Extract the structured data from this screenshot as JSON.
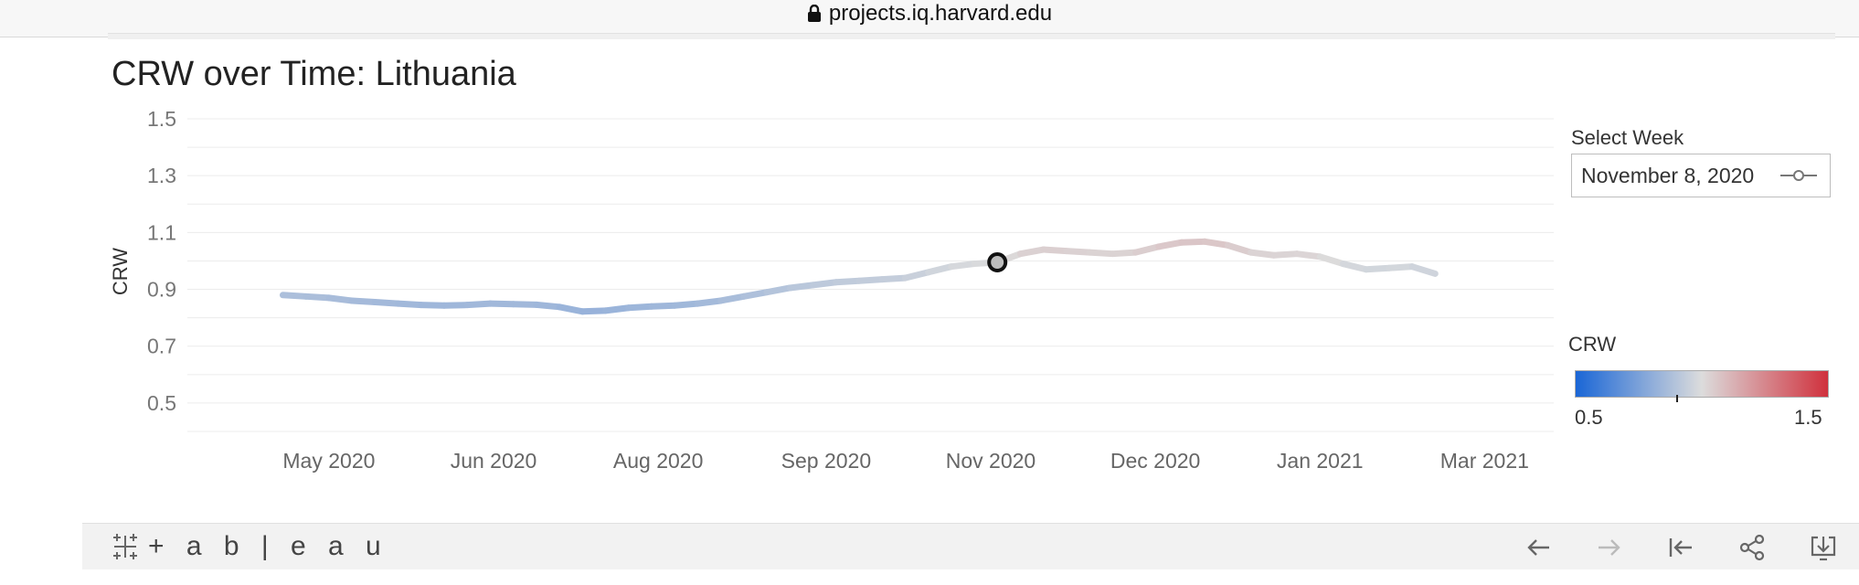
{
  "browser": {
    "url": "projects.iq.harvard.edu",
    "lock_icon": "lock-icon"
  },
  "chart_data": {
    "type": "line",
    "title": "CRW over Time: Lithuania",
    "xlabel": "",
    "ylabel": "CRW",
    "ylim": [
      0.4,
      1.5
    ],
    "yticks": [
      "1.5",
      "1.3",
      "1.1",
      "0.9",
      "0.7",
      "0.5"
    ],
    "xticks": [
      "May 2020",
      "Jun 2020",
      "Aug 2020",
      "Sep 2020",
      "Nov 2020",
      "Dec 2020",
      "Jan 2021",
      "Mar 2021"
    ],
    "grid": true,
    "series": [
      {
        "x": [
          "2020-04-05",
          "2020-04-12",
          "2020-04-19",
          "2020-04-26",
          "2020-05-03",
          "2020-05-10",
          "2020-05-17",
          "2020-05-24",
          "2020-05-31",
          "2020-06-07",
          "2020-06-14",
          "2020-06-21",
          "2020-06-28",
          "2020-07-05",
          "2020-07-12",
          "2020-07-19",
          "2020-07-26",
          "2020-08-02",
          "2020-08-09",
          "2020-08-16",
          "2020-08-23",
          "2020-08-30",
          "2020-09-06",
          "2020-09-13",
          "2020-09-20",
          "2020-09-27",
          "2020-10-04",
          "2020-10-11",
          "2020-10-18",
          "2020-10-25",
          "2020-11-01",
          "2020-11-08",
          "2020-11-15",
          "2020-11-22",
          "2020-11-29",
          "2020-12-06",
          "2020-12-13",
          "2020-12-20",
          "2020-12-27",
          "2021-01-03",
          "2021-01-10",
          "2021-01-17",
          "2021-01-24",
          "2021-01-31",
          "2021-02-07",
          "2021-02-14",
          "2021-02-21",
          "2021-02-28",
          "2021-03-07",
          "2021-03-14",
          "2021-03-21"
        ],
        "values": [
          0.88,
          0.875,
          0.87,
          0.86,
          0.855,
          0.85,
          0.845,
          0.843,
          0.845,
          0.85,
          0.848,
          0.846,
          0.838,
          0.822,
          0.825,
          0.835,
          0.84,
          0.843,
          0.85,
          0.86,
          0.875,
          0.89,
          0.905,
          0.915,
          0.925,
          0.93,
          0.935,
          0.94,
          0.96,
          0.98,
          0.99,
          0.995,
          1.025,
          1.04,
          1.035,
          1.03,
          1.025,
          1.03,
          1.05,
          1.065,
          1.068,
          1.055,
          1.03,
          1.02,
          1.025,
          1.015,
          0.99,
          0.97,
          0.975,
          0.98,
          0.955
        ]
      }
    ],
    "selected": {
      "x": "2020-11-08",
      "value": 0.995
    },
    "legend": {
      "title": "CRW",
      "min_label": "0.5",
      "max_label": "1.5",
      "min": 0.5,
      "max": 1.5,
      "marker": 0.9
    },
    "colors": {
      "low": "#1a66d6",
      "mid": "#dcdcdc",
      "high": "#d0313d"
    }
  },
  "filter": {
    "label": "Select Week",
    "value": "November 8, 2020"
  },
  "footer": {
    "brand": "+ a b | e a u",
    "icons": [
      "tableau-logo-icon",
      "undo-icon",
      "redo-icon",
      "revert-icon",
      "share-icon",
      "download-icon"
    ]
  }
}
